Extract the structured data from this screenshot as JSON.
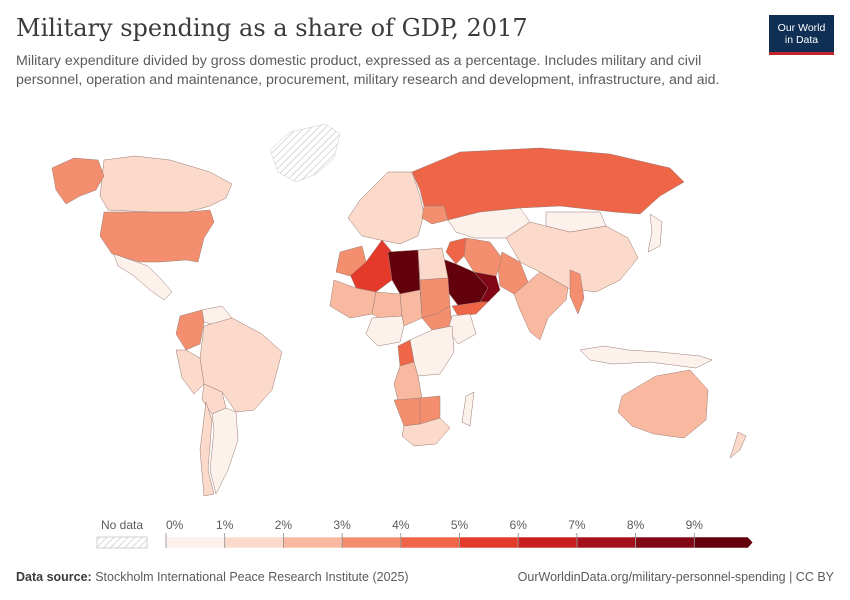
{
  "header": {
    "title": "Military spending as a share of GDP, 2017",
    "subtitle": "Military expenditure divided by gross domestic product, expressed as a percentage. Includes military and civil personnel, operation and maintenance, procurement, military research and development, infrastructure, and aid."
  },
  "logo": {
    "line1": "Our World",
    "line2": "in Data"
  },
  "legend": {
    "no_data_label": "No data",
    "ticks": [
      "0%",
      "1%",
      "2%",
      "3%",
      "4%",
      "5%",
      "6%",
      "7%",
      "8%",
      "9%"
    ],
    "colors": [
      "#fdf1ec",
      "#fbd9cb",
      "#f8b9a0",
      "#f38f6e",
      "#ee6548",
      "#e33a2b",
      "#c91e1f",
      "#a50f19",
      "#820714",
      "#62010b"
    ]
  },
  "chart_data": {
    "type": "choropleth",
    "year": 2017,
    "unit": "% of GDP",
    "scale": [
      0,
      1,
      2,
      3,
      4,
      5,
      6,
      7,
      8,
      9
    ],
    "regions": [
      {
        "name": "United States",
        "value": 3.3
      },
      {
        "name": "Canada",
        "value": 1.3
      },
      {
        "name": "Alaska (United States)",
        "value": 3.3
      },
      {
        "name": "Greenland",
        "value": null
      },
      {
        "name": "Mexico",
        "value": 0.5
      },
      {
        "name": "Colombia",
        "value": 3.2
      },
      {
        "name": "Venezuela",
        "value": 0.8
      },
      {
        "name": "Brazil",
        "value": 1.4
      },
      {
        "name": "Peru",
        "value": 1.2
      },
      {
        "name": "Bolivia",
        "value": 1.5
      },
      {
        "name": "Argentina",
        "value": 0.9
      },
      {
        "name": "Chile",
        "value": 1.9
      },
      {
        "name": "Russia",
        "value": 4.2
      },
      {
        "name": "Europe",
        "value": 1.4
      },
      {
        "name": "Ukraine",
        "value": 3.3
      },
      {
        "name": "Kazakhstan",
        "value": 0.9
      },
      {
        "name": "China",
        "value": 1.7
      },
      {
        "name": "Mongolia",
        "value": 0.8
      },
      {
        "name": "India",
        "value": 2.5
      },
      {
        "name": "Pakistan",
        "value": 3.8
      },
      {
        "name": "Iran",
        "value": 3.1
      },
      {
        "name": "Iraq",
        "value": 4.0
      },
      {
        "name": "Saudi Arabia",
        "value": 9.9
      },
      {
        "name": "Oman",
        "value": 8.8
      },
      {
        "name": "Yemen",
        "value": 4.2
      },
      {
        "name": "Algeria",
        "value": 5.9
      },
      {
        "name": "Libya",
        "value": 9.5
      },
      {
        "name": "Egypt",
        "value": 1.2
      },
      {
        "name": "Morocco",
        "value": 3.1
      },
      {
        "name": "Mali",
        "value": 2.9
      },
      {
        "name": "Niger",
        "value": 2.5
      },
      {
        "name": "Chad",
        "value": 2.2
      },
      {
        "name": "Sudan",
        "value": 3.6
      },
      {
        "name": "South Sudan",
        "value": 3.4
      },
      {
        "name": "Ethiopia",
        "value": 0.5
      },
      {
        "name": "Nigeria",
        "value": 0.5
      },
      {
        "name": "DR Congo",
        "value": 0.7
      },
      {
        "name": "Congo",
        "value": 4.4
      },
      {
        "name": "Angola",
        "value": 2.4
      },
      {
        "name": "Namibia",
        "value": 3.4
      },
      {
        "name": "Botswana",
        "value": 3.1
      },
      {
        "name": "South Africa",
        "value": 1.0
      },
      {
        "name": "Madagascar",
        "value": 0.6
      },
      {
        "name": "Myanmar",
        "value": 3.5
      },
      {
        "name": "Indonesia",
        "value": 0.8
      },
      {
        "name": "Australia",
        "value": 2.0
      },
      {
        "name": "New Zealand",
        "value": 1.2
      },
      {
        "name": "Japan",
        "value": 0.9
      }
    ]
  },
  "footer": {
    "source_label": "Data source:",
    "source_text": "Stockholm International Peace Research Institute (2025)",
    "url_text": "OurWorldinData.org/military-personnel-spending | CC BY"
  }
}
